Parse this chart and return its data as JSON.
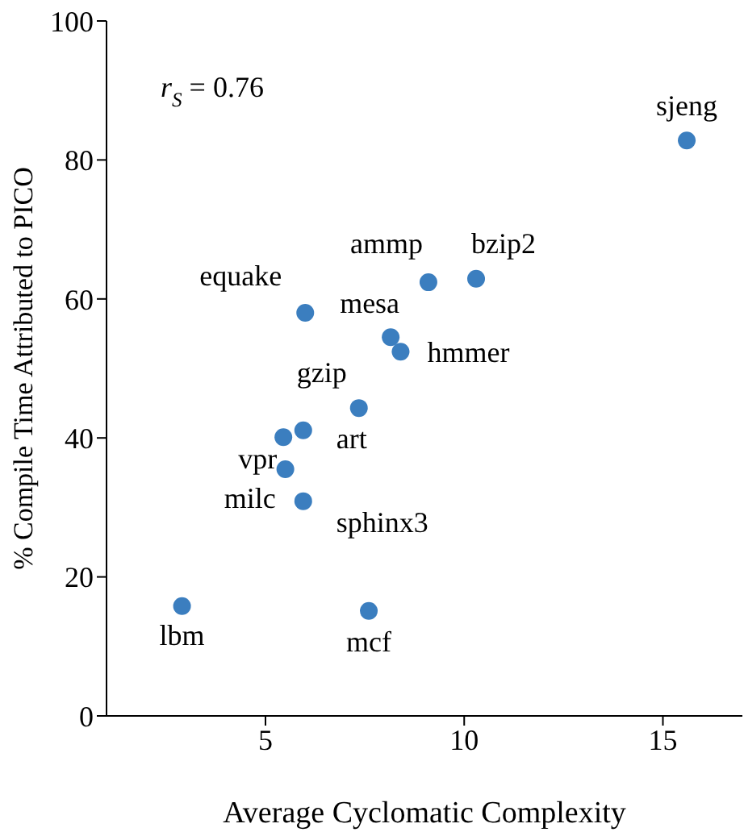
{
  "chart_data": {
    "type": "scatter",
    "xlabel": "Average Cyclomatic Complexity",
    "ylabel": "% Compile Time Attributed to PICO",
    "x": [
      15.6,
      10.3,
      9.1,
      6.0,
      8.15,
      8.4,
      7.35,
      5.95,
      5.45,
      5.5,
      5.95,
      2.9,
      7.6
    ],
    "values": [
      82.8,
      62.9,
      62.4,
      58.0,
      54.5,
      52.4,
      44.3,
      41.1,
      40.1,
      35.5,
      30.9,
      15.8,
      15.1
    ],
    "color": "#3b7ebf",
    "marker": "circle",
    "xlim": [
      1,
      17
    ],
    "xticks": [
      5,
      10,
      15
    ],
    "ylim": [
      0,
      100
    ],
    "yticks": [
      0,
      20,
      40,
      60,
      80,
      100
    ],
    "grid": false,
    "legend": false,
    "annotations": [
      "r$_{S}$ = 0.76",
      {
        "text": "sjeng",
        "x": 15.6,
        "y": 82.8
      },
      {
        "text": "bzip2",
        "x": 10.3,
        "y": 62.9
      },
      {
        "text": "ammp",
        "x": 9.1,
        "y": 62.4
      },
      {
        "text": "equake",
        "x": 6.0,
        "y": 58.0
      },
      {
        "text": "mesa",
        "x": 8.15,
        "y": 54.5
      },
      {
        "text": "hmmer",
        "x": 8.4,
        "y": 52.4
      },
      {
        "text": "gzip",
        "x": 7.35,
        "y": 44.3
      },
      {
        "text": "art",
        "x": 5.95,
        "y": 41.1
      },
      {
        "text": "vpr",
        "x": 5.45,
        "y": 40.1
      },
      {
        "text": "milc",
        "x": 5.5,
        "y": 35.5
      },
      {
        "text": "sphinx3",
        "x": 5.95,
        "y": 30.9
      },
      {
        "text": "lbm",
        "x": 2.9,
        "y": 15.8
      },
      {
        "text": "mcf",
        "x": 7.6,
        "y": 15.1
      }
    ]
  }
}
